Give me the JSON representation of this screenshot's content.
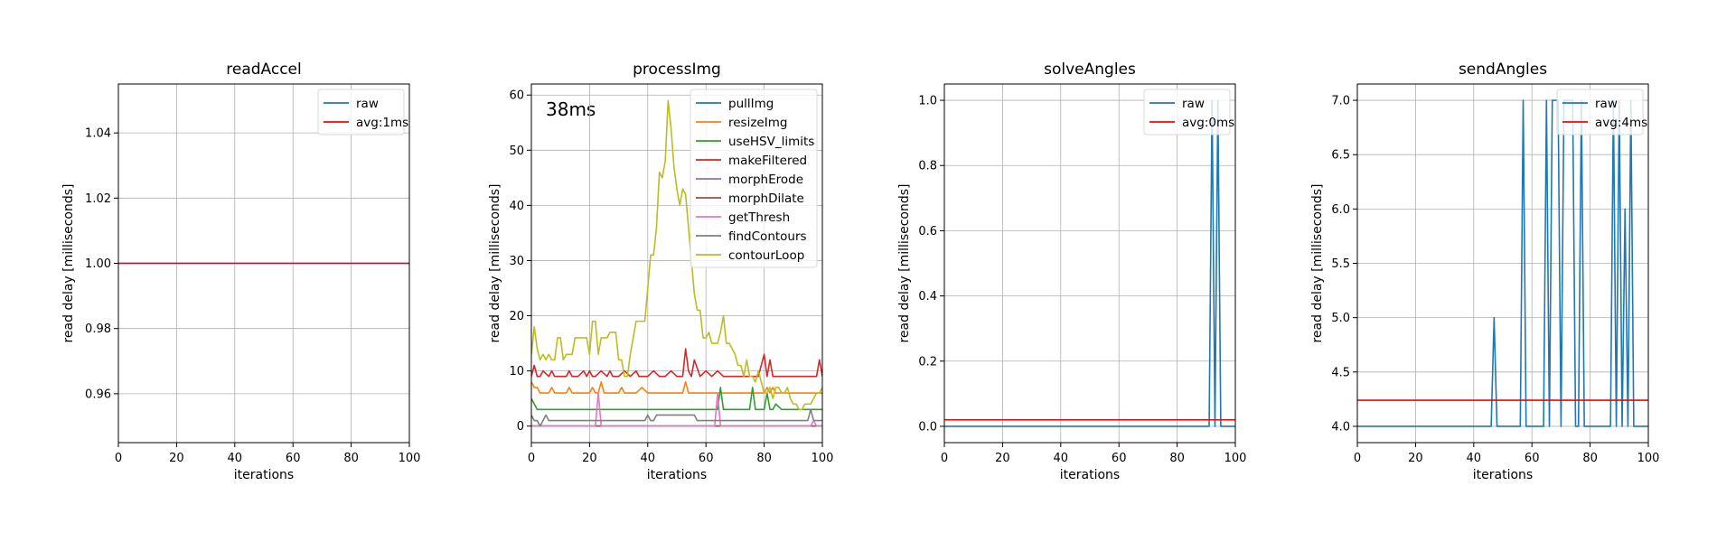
{
  "chart_data": [
    {
      "type": "line",
      "title": "readAccel",
      "xlabel": "iterations",
      "ylabel": "read delay [milliseconds]",
      "xlim": [
        0,
        100
      ],
      "ylim": [
        0.945,
        1.055
      ],
      "xticks": [
        0,
        20,
        40,
        60,
        80,
        100
      ],
      "yticks": [
        0.96,
        0.98,
        1.0,
        1.02,
        1.04
      ],
      "ytick_decimals": 2,
      "grid": true,
      "legend": "top-right",
      "annotation": "",
      "series": [
        {
          "name": "raw",
          "color": "#1f77b4",
          "x": [
            0,
            100
          ],
          "y": [
            1,
            1
          ]
        },
        {
          "name": "avg:1ms",
          "color": "#ff0000",
          "x": [
            0,
            100
          ],
          "y": [
            1,
            1
          ]
        }
      ]
    },
    {
      "type": "line",
      "title": "processImg",
      "xlabel": "iterations",
      "ylabel": "read delay [milliseconds]",
      "xlim": [
        0,
        100
      ],
      "ylim": [
        -3,
        62
      ],
      "xticks": [
        0,
        20,
        40,
        60,
        80,
        100
      ],
      "yticks": [
        0,
        10,
        20,
        30,
        40,
        50,
        60
      ],
      "ytick_decimals": 0,
      "grid": true,
      "legend": "top-right",
      "annotation": "38ms",
      "series": [
        {
          "name": "pullImg",
          "color": "#1f77b4",
          "x": [
            0,
            100
          ],
          "y": [
            0,
            0
          ]
        },
        {
          "name": "resizeImg",
          "color": "#ff7f0e",
          "x": [
            0,
            1,
            2,
            3,
            4,
            6,
            7,
            8,
            10,
            12,
            13,
            14,
            16,
            18,
            20,
            21,
            22,
            23,
            24,
            25,
            26,
            30,
            31,
            32,
            36,
            38,
            40,
            42,
            45,
            48,
            50,
            51,
            52,
            53,
            54,
            55,
            56,
            58,
            59,
            60,
            62,
            63,
            64,
            66,
            68,
            70,
            72,
            74,
            75,
            76,
            78,
            80,
            81,
            82,
            83,
            84,
            85,
            86,
            88,
            90,
            92,
            94,
            96,
            98,
            99,
            100
          ],
          "y": [
            8,
            7,
            7,
            6,
            6,
            6,
            7,
            6,
            6,
            6,
            7,
            6,
            6,
            6,
            6,
            7,
            6,
            6,
            8,
            6,
            6,
            6,
            7,
            6,
            6,
            7,
            6,
            6,
            6,
            6,
            6,
            6,
            6,
            8,
            6,
            6,
            6,
            6,
            6,
            6,
            6,
            6,
            6,
            6,
            6,
            6,
            6,
            6,
            6,
            6,
            6,
            6,
            7,
            6,
            7,
            6,
            6,
            6,
            6,
            6,
            6,
            6,
            6,
            6,
            6,
            6
          ]
        },
        {
          "name": "useHSV_limits",
          "color": "#2ca02c",
          "x": [
            0,
            1,
            2,
            4,
            10,
            20,
            30,
            40,
            50,
            60,
            64,
            65,
            66,
            67,
            70,
            75,
            76,
            77,
            80,
            81,
            82,
            83,
            84,
            86,
            90,
            95,
            100
          ],
          "y": [
            5,
            4,
            3,
            3,
            3,
            3,
            3,
            3,
            3,
            3,
            3,
            7,
            3,
            3,
            3,
            3,
            7,
            3,
            3,
            6,
            3,
            3,
            4,
            3,
            3,
            3,
            3
          ]
        },
        {
          "name": "makeFiltered",
          "color": "#d62728",
          "x": [
            0,
            1,
            2,
            3,
            4,
            6,
            7,
            8,
            10,
            12,
            13,
            14,
            16,
            18,
            19,
            20,
            21,
            22,
            24,
            26,
            27,
            28,
            30,
            32,
            34,
            36,
            37,
            38,
            40,
            42,
            44,
            46,
            48,
            50,
            52,
            53,
            54,
            55,
            56,
            58,
            60,
            62,
            64,
            66,
            68,
            70,
            71,
            72,
            74,
            76,
            78,
            80,
            81,
            82,
            83,
            84,
            86,
            88,
            90,
            92,
            94,
            96,
            98,
            99,
            100
          ],
          "y": [
            9,
            11,
            9,
            9,
            10,
            9,
            10,
            9,
            9,
            9,
            10,
            9,
            9,
            10,
            9,
            10,
            9,
            9,
            10,
            9,
            10,
            9,
            9,
            10,
            9,
            10,
            9,
            9,
            9,
            10,
            9,
            9,
            10,
            9,
            9,
            14,
            10,
            9,
            12,
            9,
            10,
            9,
            10,
            9,
            9,
            9,
            9,
            9,
            9,
            9,
            9,
            13,
            9,
            12,
            9,
            9,
            9,
            9,
            9,
            9,
            9,
            9,
            9,
            12,
            9
          ]
        },
        {
          "name": "morphErode",
          "color": "#9467bd",
          "x": [
            0,
            100
          ],
          "y": [
            0,
            0
          ]
        },
        {
          "name": "morphDilate",
          "color": "#8c564b",
          "x": [
            0,
            100
          ],
          "y": [
            0,
            0
          ]
        },
        {
          "name": "getThresh",
          "color": "#e377c2",
          "x": [
            0,
            22,
            23,
            24,
            63,
            64,
            65,
            96,
            97,
            98,
            100
          ],
          "y": [
            0,
            0,
            6,
            0,
            0,
            6,
            0,
            0,
            1,
            0,
            0
          ]
        },
        {
          "name": "findContours",
          "color": "#7f7f7f",
          "x": [
            0,
            1,
            2,
            3,
            4,
            5,
            6,
            8,
            10,
            20,
            30,
            39,
            40,
            41,
            42,
            43,
            44,
            50,
            56,
            57,
            58,
            60,
            70,
            80,
            90,
            95,
            96,
            97,
            98,
            100
          ],
          "y": [
            2,
            1,
            1,
            0,
            1,
            2,
            1,
            1,
            1,
            1,
            1,
            1,
            2,
            1,
            1,
            2,
            2,
            2,
            2,
            1,
            1,
            1,
            1,
            1,
            1,
            1,
            3,
            1,
            1,
            1
          ]
        },
        {
          "name": "contourLoop",
          "color": "#bcbd22",
          "x": [
            0,
            1,
            2,
            3,
            4,
            5,
            6,
            7,
            8,
            9,
            10,
            11,
            12,
            13,
            14,
            15,
            16,
            17,
            18,
            19,
            20,
            21,
            22,
            23,
            24,
            25,
            26,
            27,
            28,
            29,
            30,
            31,
            32,
            33,
            34,
            35,
            36,
            37,
            38,
            39,
            40,
            41,
            42,
            43,
            44,
            45,
            46,
            47,
            48,
            49,
            50,
            51,
            52,
            53,
            54,
            55,
            56,
            57,
            58,
            59,
            60,
            61,
            62,
            63,
            64,
            65,
            66,
            67,
            68,
            69,
            70,
            71,
            72,
            73,
            74,
            75,
            76,
            77,
            78,
            79,
            80,
            81,
            82,
            83,
            84,
            85,
            86,
            87,
            88,
            89,
            90,
            91,
            92,
            93,
            94,
            95,
            96,
            97,
            98,
            99,
            100
          ],
          "y": [
            13,
            18,
            14,
            12,
            13,
            12,
            13,
            12,
            12,
            16,
            16,
            12,
            13,
            13,
            13,
            16,
            16,
            16,
            16,
            16,
            13,
            19,
            19,
            13,
            16,
            16,
            16,
            17,
            17,
            17,
            12,
            12,
            9,
            9,
            13,
            16,
            19,
            19,
            19,
            19,
            25,
            31,
            31,
            36,
            46,
            45,
            48,
            59,
            54,
            47,
            43,
            40,
            43,
            42,
            36,
            30,
            24,
            21,
            21,
            16,
            16,
            17,
            15,
            15,
            15,
            17,
            20,
            15,
            15,
            14,
            13,
            11,
            11,
            9,
            12,
            9,
            9,
            8,
            10,
            8,
            6,
            6,
            7,
            5,
            7,
            7,
            6,
            6,
            7,
            5,
            4,
            4,
            3,
            3,
            4,
            4,
            4,
            5,
            6,
            6,
            7
          ]
        }
      ]
    },
    {
      "type": "line",
      "title": "solveAngles",
      "xlabel": "iterations",
      "ylabel": "read delay [milliseconds]",
      "xlim": [
        0,
        100
      ],
      "ylim": [
        -0.05,
        1.05
      ],
      "xticks": [
        0,
        20,
        40,
        60,
        80,
        100
      ],
      "yticks": [
        0.0,
        0.2,
        0.4,
        0.6,
        0.8,
        1.0
      ],
      "ytick_decimals": 1,
      "grid": true,
      "legend": "top-right",
      "annotation": "",
      "series": [
        {
          "name": "raw",
          "color": "#1f77b4",
          "x": [
            0,
            91,
            92,
            93,
            94,
            95,
            100
          ],
          "y": [
            0,
            0,
            1,
            0,
            1,
            0,
            0
          ]
        },
        {
          "name": "avg:0ms",
          "color": "#ff0000",
          "x": [
            0,
            100
          ],
          "y": [
            0.02,
            0.02
          ]
        }
      ]
    },
    {
      "type": "line",
      "title": "sendAngles",
      "xlabel": "iterations",
      "ylabel": "read delay [milliseconds]",
      "xlim": [
        0,
        100
      ],
      "ylim": [
        3.85,
        7.15
      ],
      "xticks": [
        0,
        20,
        40,
        60,
        80,
        100
      ],
      "yticks": [
        4.0,
        4.5,
        5.0,
        5.5,
        6.0,
        6.5,
        7.0
      ],
      "ytick_decimals": 1,
      "grid": true,
      "legend": "top-right",
      "annotation": "",
      "series": [
        {
          "name": "raw",
          "color": "#1f77b4",
          "x": [
            0,
            46,
            47,
            48,
            56,
            57,
            58,
            64,
            65,
            66,
            67,
            68,
            69,
            70,
            71,
            72,
            73,
            74,
            75,
            76,
            77,
            78,
            87,
            88,
            89,
            90,
            91,
            92,
            93,
            94,
            95,
            100
          ],
          "y": [
            4,
            4,
            5,
            4,
            4,
            7,
            4,
            4,
            7,
            4,
            7,
            7,
            7,
            4,
            7,
            7,
            7,
            7,
            4,
            4,
            7,
            4,
            4,
            7,
            4,
            7,
            4,
            6,
            4,
            7,
            4,
            4
          ]
        },
        {
          "name": "avg:4ms",
          "color": "#ff0000",
          "x": [
            0,
            100
          ],
          "y": [
            4.24,
            4.24
          ]
        }
      ]
    }
  ]
}
